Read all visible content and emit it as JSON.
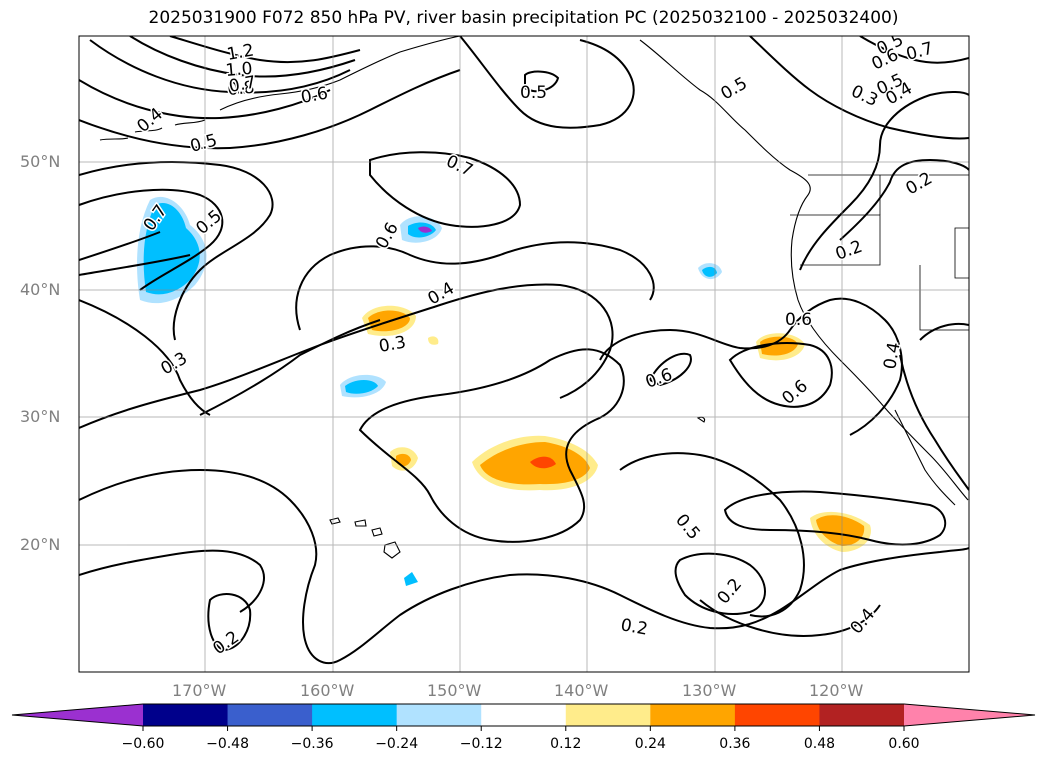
{
  "title": "2025031900 F072 850 hPa PV, river basin precipitation PC (2025032100 - 2025032400)",
  "latitude_labels": [
    "50°N",
    "40°N",
    "30°N",
    "20°N"
  ],
  "longitude_labels": [
    "170°W",
    "160°W",
    "150°W",
    "140°W",
    "130°W",
    "120°W"
  ],
  "contour_labels": [
    "1.2",
    "1.0",
    "0.8",
    "0.7",
    "0.6",
    "0.5",
    "0.4",
    "0.5",
    "0.7",
    "0.7",
    "0.5",
    "0.6",
    "0.4",
    "0.3",
    "0.3",
    "0.6",
    "0.5",
    "0.6",
    "0.5",
    "0.4",
    "0.7",
    "0.3",
    "0.2",
    "0.2",
    "0.5",
    "0.6",
    "0.6",
    "0.4",
    "0.5",
    "0.2",
    "0.2",
    "0.2",
    "0.4"
  ],
  "colorbar": {
    "ticks": [
      "−0.60",
      "−0.48",
      "−0.36",
      "−0.24",
      "−0.12",
      "0.12",
      "0.24",
      "0.36",
      "0.48",
      "0.60"
    ],
    "colors": [
      "#9b30d0",
      "#00008b",
      "#3a5fcd",
      "#00bfff",
      "#b0e2ff",
      "#ffffff",
      "#ffec8b",
      "#ffa500",
      "#ff4500",
      "#b22222",
      "#ff82ab"
    ]
  },
  "shading_colors": {
    "cyan": "#00bfff",
    "light_blue": "#b0e2ff",
    "purple": "#9b30d0",
    "orange": "#ffa500",
    "yellow": "#ffec8b",
    "red": "#ff4500"
  }
}
